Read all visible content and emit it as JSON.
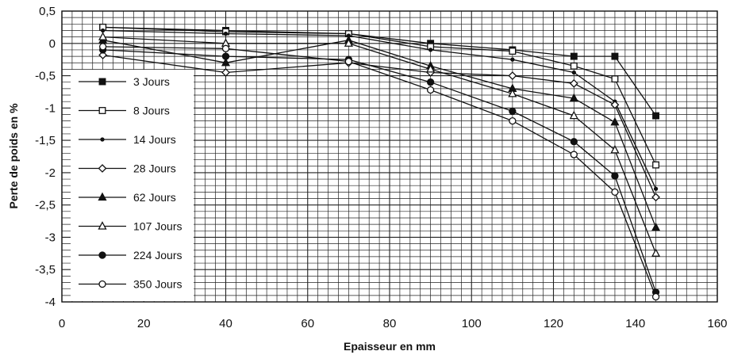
{
  "chart_data": {
    "type": "line",
    "title": "",
    "xlabel": "Epaisseur en mm",
    "ylabel": "Perte de poids en %",
    "xlim": [
      0,
      160
    ],
    "ylim": [
      -4,
      0.5
    ],
    "x_ticks": [
      "0",
      "20",
      "40",
      "60",
      "80",
      "100",
      "120",
      "140",
      "160"
    ],
    "y_ticks": [
      "0,5",
      "0",
      "-0,5",
      "-1",
      "-1,5",
      "-2",
      "-2,5",
      "-3",
      "-3,5",
      "-4"
    ],
    "grid": "dense",
    "legend_position": "left",
    "x": [
      10,
      40,
      70,
      90,
      110,
      125,
      135,
      145
    ],
    "series": [
      {
        "name": "3 Jours",
        "marker": "filled-square",
        "values": [
          0.25,
          0.2,
          0.15,
          0.0,
          -0.1,
          -0.2,
          -0.2,
          -1.12
        ]
      },
      {
        "name": "8 Jours",
        "marker": "open-square",
        "values": [
          0.25,
          0.18,
          0.15,
          -0.05,
          -0.12,
          -0.35,
          -0.55,
          -1.88
        ]
      },
      {
        "name": "14 Jours",
        "marker": "small-dot",
        "values": [
          0.2,
          0.15,
          0.12,
          -0.1,
          -0.25,
          -0.45,
          -0.9,
          -2.25
        ]
      },
      {
        "name": "28 Jours",
        "marker": "open-diamond",
        "values": [
          -0.18,
          -0.45,
          -0.3,
          -0.45,
          -0.5,
          -0.62,
          -0.95,
          -2.38
        ]
      },
      {
        "name": "62 Jours",
        "marker": "filled-triangle",
        "values": [
          0.05,
          -0.3,
          0.05,
          -0.35,
          -0.7,
          -0.85,
          -1.22,
          -2.85
        ]
      },
      {
        "name": "107 Jours",
        "marker": "open-triangle",
        "values": [
          0.1,
          0.0,
          0.0,
          -0.4,
          -0.78,
          -1.12,
          -1.65,
          -3.25
        ]
      },
      {
        "name": "224 Jours",
        "marker": "filled-circle",
        "values": [
          -0.1,
          -0.2,
          -0.25,
          -0.6,
          -1.05,
          -1.52,
          -2.05,
          -3.85
        ]
      },
      {
        "name": "350 Jours",
        "marker": "open-circle",
        "values": [
          -0.05,
          -0.08,
          -0.28,
          -0.72,
          -1.2,
          -1.72,
          -2.3,
          -3.92
        ]
      }
    ]
  }
}
